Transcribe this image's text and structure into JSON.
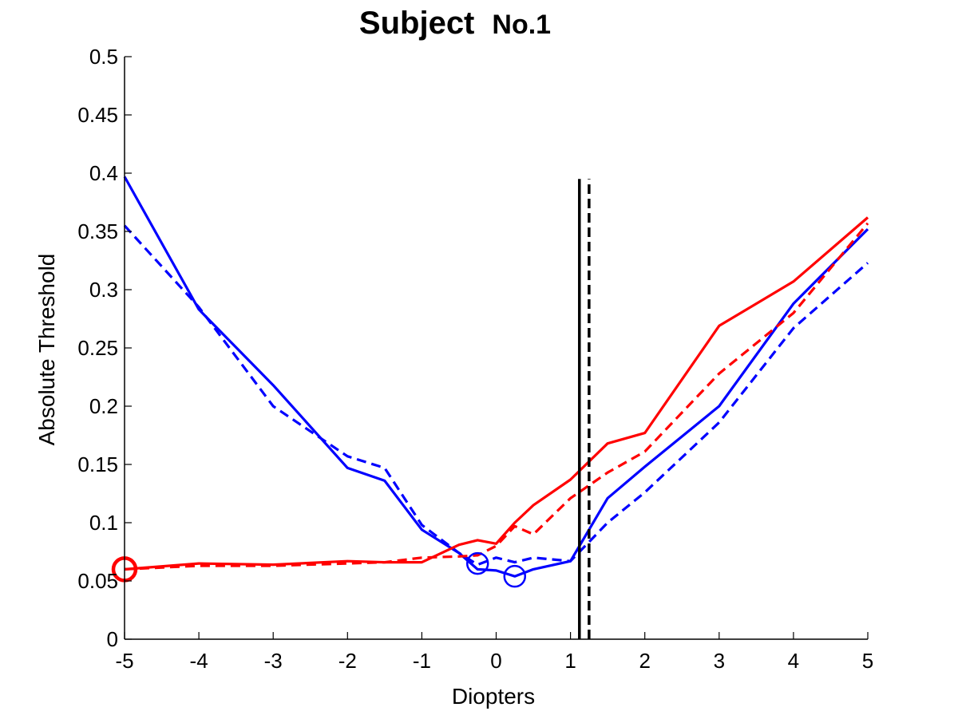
{
  "chart_data": {
    "type": "line",
    "title": "Subject",
    "title_suffix": "No.1",
    "xlabel": "Diopters",
    "ylabel": "Absolute Threshold",
    "xlim": [
      -5,
      5
    ],
    "ylim": [
      0,
      0.5
    ],
    "xticks": [
      -5,
      -4,
      -3,
      -2,
      -1,
      0,
      1,
      2,
      3,
      4,
      5
    ],
    "yticks": [
      0,
      0.05,
      0.1,
      0.15,
      0.2,
      0.25,
      0.3,
      0.35,
      0.4,
      0.45,
      0.5
    ],
    "xtick_labels": [
      "-5",
      "-4",
      "-3",
      "-2",
      "-1",
      "0",
      "1",
      "2",
      "3",
      "4",
      "5"
    ],
    "ytick_labels": [
      "0",
      "0.05",
      "0.1",
      "0.15",
      "0.2",
      "0.25",
      "0.3",
      "0.35",
      "0.4",
      "0.45",
      "0.5"
    ],
    "grid": false,
    "series": [
      {
        "color": "#0000ff",
        "dash": "solid",
        "x": [
          -5,
          -4,
          -3,
          -2,
          -1.5,
          -1,
          -0.5,
          -0.25,
          0,
          0.25,
          0.5,
          1,
          1.5,
          2,
          3,
          4,
          5
        ],
        "y": [
          0.397,
          0.283,
          0.218,
          0.147,
          0.136,
          0.094,
          0.074,
          0.06,
          0.059,
          0.054,
          0.06,
          0.067,
          0.121,
          0.148,
          0.2,
          0.288,
          0.352
        ]
      },
      {
        "color": "#0000ff",
        "dash": "dashed",
        "x": [
          -5,
          -4,
          -3,
          -2,
          -1.5,
          -1,
          -0.5,
          -0.25,
          0,
          0.25,
          0.5,
          1,
          1.5,
          2,
          3,
          4,
          5
        ],
        "y": [
          0.355,
          0.285,
          0.2,
          0.157,
          0.147,
          0.098,
          0.074,
          0.064,
          0.07,
          0.066,
          0.07,
          0.067,
          0.1,
          0.126,
          0.186,
          0.267,
          0.323
        ]
      },
      {
        "color": "#ff0000",
        "dash": "solid",
        "x": [
          -5,
          -4,
          -3,
          -2,
          -1.5,
          -1,
          -0.5,
          -0.25,
          0,
          0.25,
          0.5,
          1,
          1.5,
          2,
          3,
          4,
          5
        ],
        "y": [
          0.06,
          0.065,
          0.064,
          0.067,
          0.066,
          0.066,
          0.081,
          0.085,
          0.082,
          0.1,
          0.115,
          0.137,
          0.168,
          0.177,
          0.269,
          0.307,
          0.362
        ]
      },
      {
        "color": "#ff0000",
        "dash": "dashed",
        "x": [
          -5,
          -4,
          -3,
          -2,
          -1.5,
          -1,
          -0.5,
          -0.25,
          0,
          0.25,
          0.5,
          1,
          1.5,
          2,
          3,
          4,
          5
        ],
        "y": [
          0.06,
          0.063,
          0.063,
          0.065,
          0.066,
          0.07,
          0.071,
          0.072,
          0.08,
          0.097,
          0.09,
          0.121,
          0.143,
          0.161,
          0.228,
          0.28,
          0.357
        ]
      }
    ],
    "markers": [
      {
        "shape": "circle",
        "color": "#ff0000",
        "x": -5,
        "y": 0.06,
        "size": "large"
      },
      {
        "shape": "circle",
        "color": "#0000ff",
        "x": -0.25,
        "y": 0.065,
        "size": "medium"
      },
      {
        "shape": "circle",
        "color": "#0000ff",
        "x": 0.25,
        "y": 0.054,
        "size": "medium"
      }
    ],
    "vertical_lines": [
      {
        "x": 1.12,
        "ymin": 0,
        "ymax": 0.395,
        "color": "#000000",
        "dash": "solid"
      },
      {
        "x": 1.25,
        "ymin": 0,
        "ymax": 0.395,
        "color": "#000000",
        "dash": "dashed"
      }
    ]
  }
}
